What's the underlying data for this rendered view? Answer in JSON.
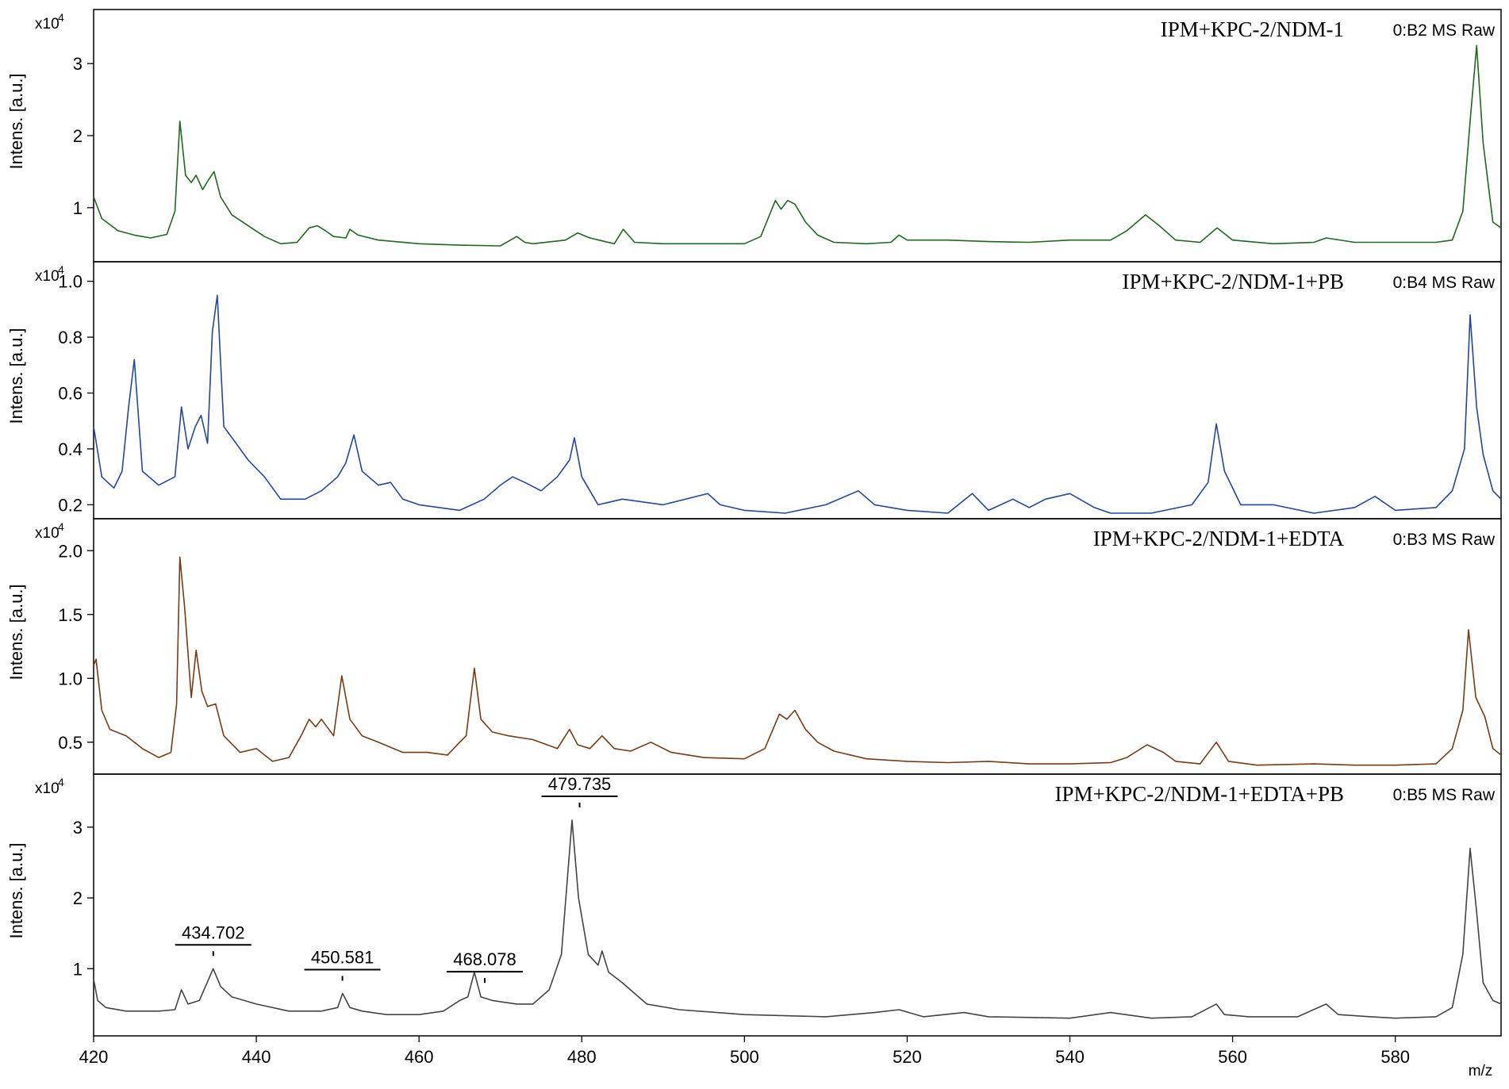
{
  "chart_data": {
    "type": "line",
    "x_unit_label": "m/z",
    "xlim": [
      420,
      593
    ],
    "x_ticks": [
      "420",
      "440",
      "460",
      "480",
      "500",
      "520",
      "540",
      "560",
      "580"
    ],
    "shared_y_label": "Intens. [a.u.]",
    "shared_y_exponent_base": "x10",
    "shared_y_exponent_power": "4",
    "panels": [
      {
        "title": "IPM+KPC-2/NDM-1",
        "source": "0:B2 MS Raw",
        "color": "#1a6b1a",
        "ylim": [
          0.25,
          3.75
        ],
        "y_ticks": [
          "1",
          "2",
          "3"
        ],
        "y_tick_values": [
          1,
          2,
          3
        ],
        "series": {
          "x": [
            420,
            421,
            423,
            425,
            427,
            429,
            430,
            430.6,
            431.3,
            432,
            432.6,
            433.4,
            434.2,
            434.8,
            435.6,
            437,
            439,
            441,
            443,
            445,
            446.5,
            447.5,
            448.5,
            449.5,
            451,
            451.5,
            452.5,
            455,
            460,
            465,
            470,
            472,
            473,
            474,
            478,
            479.5,
            481,
            484,
            485.1,
            486.5,
            490,
            495,
            500,
            502,
            503.8,
            504.5,
            505.3,
            506.2,
            507.5,
            509,
            511,
            515,
            518,
            519,
            520,
            525,
            530,
            535,
            540,
            545,
            547,
            549.3,
            551,
            553,
            556,
            558.1,
            560,
            565,
            570,
            571.5,
            575,
            580,
            585,
            587,
            588.3,
            589.2,
            590,
            590.8,
            592,
            593
          ],
          "y": [
            1.15,
            0.85,
            0.68,
            0.62,
            0.58,
            0.63,
            0.95,
            2.2,
            1.45,
            1.35,
            1.45,
            1.25,
            1.4,
            1.5,
            1.15,
            0.9,
            0.75,
            0.6,
            0.5,
            0.52,
            0.72,
            0.75,
            0.68,
            0.6,
            0.58,
            0.7,
            0.62,
            0.55,
            0.5,
            0.48,
            0.47,
            0.6,
            0.52,
            0.5,
            0.55,
            0.65,
            0.58,
            0.5,
            0.7,
            0.52,
            0.5,
            0.5,
            0.5,
            0.6,
            1.1,
            0.98,
            1.1,
            1.05,
            0.8,
            0.62,
            0.52,
            0.5,
            0.52,
            0.62,
            0.55,
            0.55,
            0.53,
            0.52,
            0.55,
            0.55,
            0.68,
            0.9,
            0.75,
            0.55,
            0.52,
            0.72,
            0.55,
            0.5,
            0.52,
            0.58,
            0.52,
            0.52,
            0.52,
            0.55,
            0.95,
            2.2,
            3.25,
            1.9,
            0.8,
            0.72
          ]
        }
      },
      {
        "title": "IPM+KPC-2/NDM-1+PB",
        "source": "0:B4 MS Raw",
        "color": "#2146a8",
        "ylim": [
          0.15,
          1.07
        ],
        "y_ticks": [
          "0.2",
          "0.4",
          "0.6",
          "0.8",
          "1.0"
        ],
        "y_tick_values": [
          0.2,
          0.4,
          0.6,
          0.8,
          1.0
        ],
        "series": {
          "x": [
            420,
            421,
            422.5,
            423.5,
            424.3,
            425,
            426,
            428,
            430,
            430.8,
            431.6,
            432.5,
            433.2,
            434,
            434.6,
            435.2,
            436,
            437.5,
            439,
            441,
            443,
            446,
            448,
            450,
            451,
            452,
            453,
            455,
            456.5,
            458,
            460,
            465,
            468,
            470,
            471.5,
            473,
            475,
            477,
            478.5,
            479.1,
            480,
            482,
            485,
            490,
            495.5,
            497,
            500,
            505,
            510,
            514,
            516,
            520,
            525,
            528,
            530,
            533,
            535,
            537,
            540,
            543,
            545,
            550,
            555,
            557,
            558,
            559,
            561,
            565,
            570,
            575,
            577.5,
            580,
            585,
            587,
            588.5,
            589.2,
            590,
            590.8,
            592,
            593
          ],
          "y": [
            0.48,
            0.3,
            0.26,
            0.32,
            0.55,
            0.72,
            0.32,
            0.27,
            0.3,
            0.55,
            0.4,
            0.48,
            0.52,
            0.42,
            0.82,
            0.95,
            0.48,
            0.42,
            0.36,
            0.3,
            0.22,
            0.22,
            0.25,
            0.3,
            0.35,
            0.45,
            0.32,
            0.27,
            0.28,
            0.22,
            0.2,
            0.18,
            0.22,
            0.27,
            0.3,
            0.28,
            0.25,
            0.3,
            0.36,
            0.44,
            0.3,
            0.2,
            0.22,
            0.2,
            0.24,
            0.2,
            0.18,
            0.17,
            0.2,
            0.25,
            0.2,
            0.18,
            0.17,
            0.24,
            0.18,
            0.22,
            0.19,
            0.22,
            0.24,
            0.19,
            0.17,
            0.17,
            0.2,
            0.28,
            0.49,
            0.32,
            0.2,
            0.2,
            0.17,
            0.19,
            0.23,
            0.18,
            0.19,
            0.25,
            0.4,
            0.88,
            0.55,
            0.38,
            0.25,
            0.22
          ]
        }
      },
      {
        "title": "IPM+KPC-2/NDM-1+EDTA",
        "source": "0:B3 MS Raw",
        "color": "#7a3b13",
        "ylim": [
          0.25,
          2.25
        ],
        "y_ticks": [
          "0.5",
          "1.0",
          "1.5",
          "2.0"
        ],
        "y_tick_values": [
          0.5,
          1.0,
          1.5,
          2.0
        ],
        "series": {
          "x": [
            420,
            420.3,
            421,
            422,
            424,
            426,
            428,
            429.5,
            430.2,
            430.6,
            431.2,
            432,
            432.6,
            433.3,
            434,
            435,
            436,
            438,
            440,
            442,
            444,
            445.5,
            446.5,
            447.3,
            448,
            449.5,
            450.5,
            451.5,
            453,
            455,
            458,
            461,
            463.5,
            465,
            465.8,
            466.8,
            467.6,
            469,
            471,
            474,
            477,
            478.5,
            479.5,
            481,
            482.5,
            484,
            486,
            488.5,
            491,
            495,
            500,
            502.5,
            504.3,
            505.2,
            506.2,
            507.5,
            509,
            511,
            515,
            520,
            525,
            530,
            535,
            540,
            545,
            547,
            549.5,
            551.5,
            553,
            556,
            558,
            559.5,
            563,
            570,
            575,
            580,
            585,
            587,
            588.3,
            589,
            589.9,
            591,
            592,
            593
          ],
          "y": [
            1.1,
            1.15,
            0.75,
            0.6,
            0.55,
            0.45,
            0.38,
            0.42,
            0.8,
            1.95,
            1.55,
            0.85,
            1.22,
            0.9,
            0.78,
            0.8,
            0.55,
            0.42,
            0.45,
            0.35,
            0.38,
            0.55,
            0.68,
            0.62,
            0.68,
            0.55,
            1.02,
            0.68,
            0.55,
            0.5,
            0.42,
            0.42,
            0.4,
            0.5,
            0.55,
            1.08,
            0.68,
            0.58,
            0.55,
            0.52,
            0.45,
            0.6,
            0.48,
            0.45,
            0.55,
            0.45,
            0.43,
            0.5,
            0.42,
            0.38,
            0.37,
            0.45,
            0.72,
            0.68,
            0.75,
            0.6,
            0.5,
            0.43,
            0.37,
            0.35,
            0.34,
            0.35,
            0.33,
            0.33,
            0.34,
            0.38,
            0.48,
            0.42,
            0.35,
            0.33,
            0.5,
            0.35,
            0.32,
            0.33,
            0.32,
            0.32,
            0.33,
            0.45,
            0.75,
            1.38,
            0.85,
            0.7,
            0.45,
            0.4
          ]
        }
      },
      {
        "title": "IPM+KPC-2/NDM-1+EDTA+PB",
        "source": "0:B5 MS Raw",
        "color": "#444444",
        "ylim": [
          0.05,
          3.75
        ],
        "y_ticks": [
          "1",
          "2",
          "3"
        ],
        "y_tick_values": [
          1,
          2,
          3
        ],
        "series": {
          "x": [
            420,
            420.5,
            421.5,
            424,
            428,
            430,
            430.8,
            431.6,
            433,
            434.7,
            435.6,
            437,
            440,
            444,
            448,
            450,
            450.6,
            451.5,
            453,
            456,
            460,
            463,
            465,
            466,
            466.8,
            467.6,
            469,
            472,
            474,
            476,
            477.5,
            478.8,
            479.6,
            480.8,
            482,
            482.5,
            483.3,
            485,
            488,
            492,
            500,
            510,
            516,
            519,
            522,
            527,
            530,
            540,
            545,
            550,
            555,
            558,
            559,
            562,
            568,
            571.5,
            573,
            577,
            580,
            585,
            587,
            588.3,
            589.2,
            590,
            590.8,
            592,
            593
          ],
          "y": [
            0.85,
            0.55,
            0.45,
            0.4,
            0.4,
            0.42,
            0.7,
            0.5,
            0.55,
            1.0,
            0.75,
            0.6,
            0.5,
            0.4,
            0.4,
            0.45,
            0.65,
            0.45,
            0.4,
            0.35,
            0.35,
            0.4,
            0.55,
            0.6,
            0.95,
            0.6,
            0.55,
            0.5,
            0.5,
            0.7,
            1.2,
            3.1,
            2.0,
            1.2,
            1.05,
            1.25,
            0.95,
            0.8,
            0.5,
            0.42,
            0.35,
            0.32,
            0.38,
            0.42,
            0.32,
            0.38,
            0.32,
            0.3,
            0.38,
            0.3,
            0.32,
            0.5,
            0.35,
            0.32,
            0.32,
            0.5,
            0.35,
            0.32,
            0.3,
            0.32,
            0.45,
            1.2,
            2.7,
            1.8,
            0.8,
            0.55,
            0.5
          ]
        },
        "peak_labels": [
          {
            "text": "434.702",
            "x": 434.702,
            "y": 1.0
          },
          {
            "text": "450.581",
            "x": 450.581,
            "y": 0.65
          },
          {
            "text": "468.078",
            "x": 468.078,
            "y": 0.62
          },
          {
            "text": "479.735",
            "x": 479.735,
            "y": 3.1
          }
        ]
      }
    ]
  }
}
